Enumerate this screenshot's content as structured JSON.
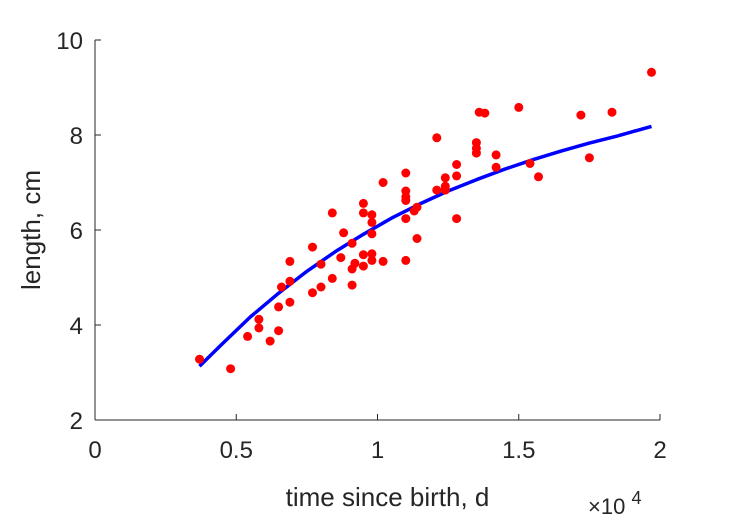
{
  "chart_data": {
    "type": "scatter",
    "title": "",
    "xlabel": "time since birth, d",
    "ylabel": "length, cm",
    "x_multiplier_label": "×10",
    "x_multiplier_exponent": "4",
    "xlim": [
      0,
      2
    ],
    "ylim": [
      2,
      10
    ],
    "x_ticks": [
      "0",
      "0.5",
      "1",
      "1.5",
      "2"
    ],
    "y_ticks": [
      "2",
      "4",
      "6",
      "8",
      "10"
    ],
    "grid": false,
    "legend": "none",
    "series": [
      {
        "kind": "points",
        "color": "#ff0000",
        "points": [
          [
            0.37,
            3.28
          ],
          [
            0.48,
            3.08
          ],
          [
            0.54,
            3.76
          ],
          [
            0.58,
            3.94
          ],
          [
            0.58,
            4.12
          ],
          [
            0.62,
            3.66
          ],
          [
            0.65,
            3.88
          ],
          [
            0.65,
            4.38
          ],
          [
            0.66,
            4.8
          ],
          [
            0.69,
            4.48
          ],
          [
            0.69,
            4.92
          ],
          [
            0.69,
            5.34
          ],
          [
            0.77,
            4.68
          ],
          [
            0.77,
            5.64
          ],
          [
            0.8,
            4.8
          ],
          [
            0.8,
            5.28
          ],
          [
            0.84,
            4.98
          ],
          [
            0.84,
            6.36
          ],
          [
            0.87,
            5.42
          ],
          [
            0.88,
            5.94
          ],
          [
            0.91,
            4.84
          ],
          [
            0.91,
            5.18
          ],
          [
            0.91,
            5.72
          ],
          [
            0.92,
            5.3
          ],
          [
            0.95,
            5.24
          ],
          [
            0.95,
            5.48
          ],
          [
            0.95,
            6.36
          ],
          [
            0.95,
            6.56
          ],
          [
            0.98,
            5.36
          ],
          [
            0.98,
            5.5
          ],
          [
            0.98,
            5.92
          ],
          [
            0.98,
            6.16
          ],
          [
            0.98,
            6.32
          ],
          [
            1.02,
            5.34
          ],
          [
            1.02,
            7.0
          ],
          [
            1.1,
            5.36
          ],
          [
            1.1,
            6.24
          ],
          [
            1.1,
            6.62
          ],
          [
            1.1,
            6.7
          ],
          [
            1.1,
            6.82
          ],
          [
            1.1,
            7.2
          ],
          [
            1.13,
            6.4
          ],
          [
            1.14,
            5.82
          ],
          [
            1.14,
            6.48
          ],
          [
            1.21,
            6.84
          ],
          [
            1.21,
            7.94
          ],
          [
            1.24,
            6.84
          ],
          [
            1.24,
            6.92
          ],
          [
            1.24,
            7.1
          ],
          [
            1.28,
            6.24
          ],
          [
            1.28,
            7.14
          ],
          [
            1.28,
            7.38
          ],
          [
            1.35,
            7.62
          ],
          [
            1.35,
            7.72
          ],
          [
            1.35,
            7.84
          ],
          [
            1.36,
            8.48
          ],
          [
            1.38,
            8.46
          ],
          [
            1.42,
            7.32
          ],
          [
            1.42,
            7.58
          ],
          [
            1.5,
            8.58
          ],
          [
            1.54,
            7.4
          ],
          [
            1.57,
            7.12
          ],
          [
            1.72,
            8.42
          ],
          [
            1.75,
            7.52
          ],
          [
            1.83,
            8.48
          ],
          [
            1.97,
            9.32
          ]
        ]
      },
      {
        "kind": "line",
        "color": "#0000ff",
        "points": [
          [
            0.37,
            3.13
          ],
          [
            0.45,
            3.6
          ],
          [
            0.55,
            4.17
          ],
          [
            0.65,
            4.67
          ],
          [
            0.75,
            5.13
          ],
          [
            0.85,
            5.54
          ],
          [
            0.95,
            5.91
          ],
          [
            1.05,
            6.25
          ],
          [
            1.15,
            6.55
          ],
          [
            1.25,
            6.82
          ],
          [
            1.35,
            7.06
          ],
          [
            1.45,
            7.28
          ],
          [
            1.55,
            7.48
          ],
          [
            1.65,
            7.66
          ],
          [
            1.75,
            7.83
          ],
          [
            1.85,
            7.98
          ],
          [
            1.97,
            8.18
          ]
        ]
      }
    ]
  }
}
